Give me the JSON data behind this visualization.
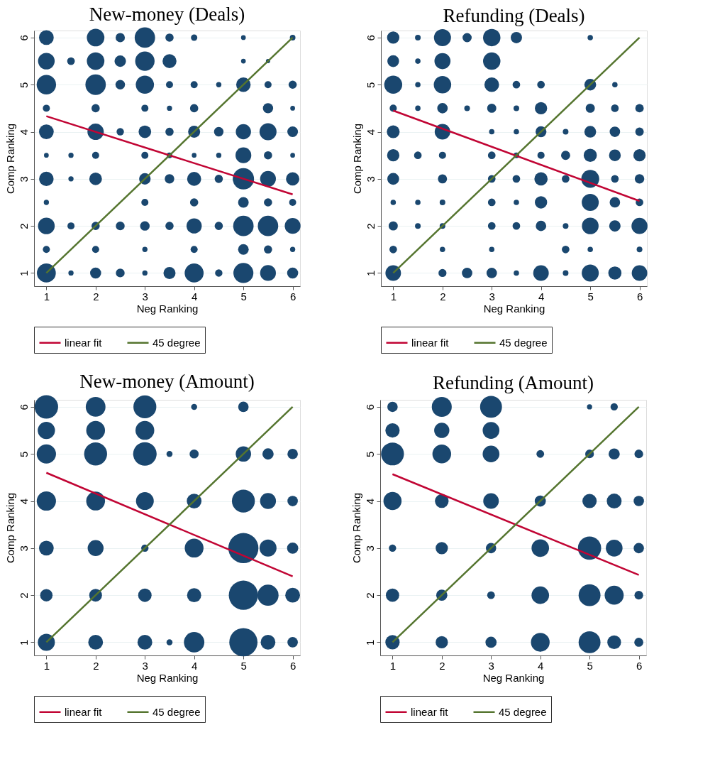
{
  "chart_data": [
    {
      "type": "bubble",
      "title": "New-money (Deals)",
      "xlabel": "Neg Ranking",
      "ylabel": "Comp Ranking",
      "xlim": [
        0.75,
        6.15
      ],
      "ylim": [
        0.72,
        6.15
      ],
      "xticks": [
        1,
        2,
        3,
        4,
        5,
        6
      ],
      "yticks": [
        1,
        2,
        3,
        4,
        5,
        6
      ],
      "grid": "y",
      "legend": "bottom",
      "series": [
        {
          "color": "#1a476f",
          "x": [
            1,
            2,
            2.5,
            3,
            3.5,
            4,
            5,
            6
          ],
          "values": [
            6,
            6,
            6,
            6,
            6,
            6,
            6,
            6
          ],
          "sizes": [
            0.48,
            0.68,
            0.19,
            0.92,
            0.15,
            0.09,
            0.05,
            0.07
          ]
        },
        {
          "color": "#1a476f",
          "x": [
            1,
            1.5,
            2,
            2.5,
            3,
            3.5,
            5,
            5.5
          ],
          "values": [
            5.5,
            5.5,
            5.5,
            5.5,
            5.5,
            5.5,
            5.5,
            5.5
          ],
          "sizes": [
            0.61,
            0.13,
            0.68,
            0.29,
            0.83,
            0.43,
            0.05,
            0.04
          ]
        },
        {
          "color": "#1a476f",
          "x": [
            1,
            2,
            2.5,
            3,
            3.5,
            4,
            4.5,
            5,
            5.5,
            6
          ],
          "values": [
            5,
            5,
            5,
            5,
            5,
            5,
            5,
            5,
            5,
            5
          ],
          "sizes": [
            0.83,
            0.92,
            0.2,
            0.73,
            0.11,
            0.11,
            0.06,
            0.46,
            0.11,
            0.15
          ]
        },
        {
          "color": "#1a476f",
          "x": [
            1,
            2,
            3,
            3.5,
            4,
            5.5,
            6
          ],
          "values": [
            4.5,
            4.5,
            4.5,
            4.5,
            4.5,
            4.5,
            4.5
          ],
          "sizes": [
            0.11,
            0.15,
            0.11,
            0.06,
            0.15,
            0.23,
            0.05
          ]
        },
        {
          "color": "#1a476f",
          "x": [
            1,
            2,
            2.5,
            3,
            3.5,
            4,
            4.5,
            5,
            5.5,
            6
          ],
          "values": [
            4,
            4,
            4,
            4,
            4,
            4,
            4,
            4,
            4,
            4
          ],
          "sizes": [
            0.48,
            0.59,
            0.12,
            0.35,
            0.15,
            0.32,
            0.2,
            0.51,
            0.64,
            0.25
          ]
        },
        {
          "color": "#1a476f",
          "x": [
            1,
            1.5,
            2,
            3,
            3.5,
            4,
            4.5,
            5,
            5.5,
            6
          ],
          "values": [
            3.5,
            3.5,
            3.5,
            3.5,
            3.5,
            3.5,
            3.5,
            3.5,
            3.5,
            3.5
          ],
          "sizes": [
            0.05,
            0.06,
            0.11,
            0.11,
            0.07,
            0.05,
            0.06,
            0.55,
            0.15,
            0.05
          ]
        },
        {
          "color": "#1a476f",
          "x": [
            1,
            1.5,
            2,
            3,
            3.5,
            4,
            4.5,
            5,
            5.5,
            6
          ],
          "values": [
            3,
            3,
            3,
            3,
            3,
            3,
            3,
            3,
            3,
            3
          ],
          "sizes": [
            0.46,
            0.06,
            0.35,
            0.29,
            0.2,
            0.43,
            0.15,
            1,
            0.55,
            0.39
          ]
        },
        {
          "color": "#1a476f",
          "x": [
            1,
            3,
            4,
            5,
            5.5,
            6
          ],
          "values": [
            2.5,
            2.5,
            2.5,
            2.5,
            2.5,
            2.5
          ],
          "sizes": [
            0.06,
            0.11,
            0.15,
            0.25,
            0.15,
            0.11
          ]
        },
        {
          "color": "#1a476f",
          "x": [
            1,
            1.5,
            2,
            2.5,
            3,
            3.5,
            4,
            4.5,
            5,
            5.5,
            6
          ],
          "values": [
            2,
            2,
            2,
            2,
            2,
            2,
            2,
            2,
            2,
            2,
            2
          ],
          "sizes": [
            0.61,
            0.11,
            0.15,
            0.17,
            0.2,
            0.15,
            0.51,
            0.15,
            0.92,
            0.92,
            0.55
          ]
        },
        {
          "color": "#1a476f",
          "x": [
            1,
            2,
            3,
            4,
            5,
            5.5,
            6
          ],
          "values": [
            1.5,
            1.5,
            1.5,
            1.5,
            1.5,
            1.5,
            1.5
          ],
          "sizes": [
            0.11,
            0.11,
            0.06,
            0.11,
            0.25,
            0.15,
            0.06
          ]
        },
        {
          "color": "#1a476f",
          "x": [
            1,
            1.5,
            2,
            2.5,
            3,
            3.5,
            4,
            4.5,
            5,
            5.5,
            6
          ],
          "values": [
            1,
            1,
            1,
            1,
            1,
            1,
            1,
            1,
            1,
            1,
            1
          ],
          "sizes": [
            0.79,
            0.06,
            0.27,
            0.17,
            0.06,
            0.32,
            0.79,
            0.12,
            0.88,
            0.55,
            0.27
          ]
        },
        {
          "type": "line",
          "name": "linear fit",
          "color": "#c10534",
          "x": [
            1,
            6
          ],
          "values": [
            4.33,
            2.67
          ]
        },
        {
          "type": "line",
          "name": "45 degree",
          "color": "#55752f",
          "x": [
            1,
            6
          ],
          "values": [
            1,
            6
          ]
        }
      ]
    },
    {
      "type": "bubble",
      "title": "Refunding (Deals)",
      "xlabel": "Neg Ranking",
      "ylabel": "Comp Ranking",
      "xlim": [
        0.75,
        6.15
      ],
      "ylim": [
        0.72,
        6.15
      ],
      "xticks": [
        1,
        2,
        3,
        4,
        5,
        6
      ],
      "yticks": [
        1,
        2,
        3,
        4,
        5,
        6
      ],
      "grid": "y",
      "legend": "bottom",
      "series": [
        {
          "color": "#1a476f",
          "x": [
            1,
            1.5,
            2,
            2.5,
            3,
            3.5,
            5
          ],
          "values": [
            6,
            6,
            6,
            6,
            6,
            6,
            6
          ],
          "sizes": [
            0.47,
            0.1,
            0.9,
            0.26,
            0.94,
            0.4,
            0.09
          ]
        },
        {
          "color": "#1a476f",
          "x": [
            1,
            1.5,
            2,
            3
          ],
          "values": [
            5.5,
            5.5,
            5.5,
            5.5
          ],
          "sizes": [
            0.43,
            0.09,
            0.8,
            0.94
          ]
        },
        {
          "color": "#1a476f",
          "x": [
            1,
            1.5,
            2,
            3,
            3.5,
            4,
            5,
            5.5
          ],
          "values": [
            5,
            5,
            5,
            5,
            5,
            5,
            5,
            5
          ],
          "sizes": [
            1,
            0.09,
            0.94,
            0.67,
            0.18,
            0.18,
            0.43,
            0.09
          ]
        },
        {
          "color": "#1a476f",
          "x": [
            1,
            1.5,
            2,
            2.5,
            3,
            3.5,
            4,
            5,
            5.5,
            6
          ],
          "values": [
            4.5,
            4.5,
            4.5,
            4.5,
            4.5,
            4.5,
            4.5,
            4.5,
            4.5,
            4.5
          ],
          "sizes": [
            0.16,
            0.09,
            0.34,
            0.1,
            0.26,
            0.1,
            0.47,
            0.26,
            0.18,
            0.22
          ]
        },
        {
          "color": "#1a476f",
          "x": [
            1,
            2,
            3,
            3.5,
            4,
            4.5,
            5,
            5.5,
            6
          ],
          "values": [
            4,
            4,
            4,
            4,
            4,
            4,
            4,
            4,
            4
          ],
          "sizes": [
            0.51,
            0.75,
            0.09,
            0.09,
            0.37,
            0.1,
            0.43,
            0.34,
            0.22
          ]
        },
        {
          "color": "#1a476f",
          "x": [
            1,
            1.5,
            2,
            3,
            3.5,
            4,
            4.5,
            5,
            5.5,
            6
          ],
          "values": [
            3.5,
            3.5,
            3.5,
            3.5,
            3.5,
            3.5,
            3.5,
            3.5,
            3.5,
            3.5
          ],
          "sizes": [
            0.47,
            0.18,
            0.16,
            0.18,
            0.1,
            0.16,
            0.26,
            0.54,
            0.43,
            0.47
          ]
        },
        {
          "color": "#1a476f",
          "x": [
            1,
            2,
            3,
            3.5,
            4,
            4.5,
            5,
            5.5,
            6
          ],
          "values": [
            3,
            3,
            3,
            3,
            3,
            3,
            3,
            3,
            3
          ],
          "sizes": [
            0.43,
            0.26,
            0.18,
            0.18,
            0.54,
            0.18,
            1,
            0.18,
            0.28
          ]
        },
        {
          "color": "#1a476f",
          "x": [
            1,
            1.5,
            2,
            3,
            3.5,
            4,
            5,
            5.5,
            6
          ],
          "values": [
            2.5,
            2.5,
            2.5,
            2.5,
            2.5,
            2.5,
            2.5,
            2.5,
            2.5
          ],
          "sizes": [
            0.09,
            0.09,
            0.1,
            0.18,
            0.09,
            0.47,
            0.9,
            0.34,
            0.18
          ]
        },
        {
          "color": "#1a476f",
          "x": [
            1,
            1.5,
            2,
            3,
            3.5,
            4,
            4.5,
            5,
            5.5,
            6
          ],
          "values": [
            2,
            2,
            2,
            2,
            2,
            2,
            2,
            2,
            2,
            2
          ],
          "sizes": [
            0.26,
            0.1,
            0.1,
            0.18,
            0.18,
            0.34,
            0.1,
            0.86,
            0.4,
            0.8
          ]
        },
        {
          "color": "#1a476f",
          "x": [
            1,
            2,
            3,
            4.5,
            5,
            6
          ],
          "values": [
            1.5,
            1.5,
            1.5,
            1.5,
            1.5,
            1.5
          ],
          "sizes": [
            0.18,
            0.09,
            0.09,
            0.18,
            0.09,
            0.1
          ]
        },
        {
          "color": "#1a476f",
          "x": [
            1,
            2,
            2.5,
            3,
            3.5,
            4,
            4.5,
            5,
            5.5,
            6
          ],
          "values": [
            1,
            1,
            1,
            1,
            1,
            1,
            1,
            1,
            1,
            1
          ],
          "sizes": [
            0.75,
            0.2,
            0.34,
            0.34,
            0.09,
            0.75,
            0.1,
            0.9,
            0.54,
            0.75
          ]
        },
        {
          "type": "line",
          "name": "linear fit",
          "color": "#c10534",
          "x": [
            1,
            6
          ],
          "values": [
            4.45,
            2.53
          ]
        },
        {
          "type": "line",
          "name": "45 degree",
          "color": "#55752f",
          "x": [
            1,
            6
          ],
          "values": [
            1,
            6
          ]
        }
      ]
    },
    {
      "type": "bubble",
      "title": "New-money (Amount)",
      "xlabel": "Neg Ranking",
      "ylabel": "Comp Ranking",
      "xlim": [
        0.75,
        6.15
      ],
      "ylim": [
        0.72,
        6.15
      ],
      "xticks": [
        1,
        2,
        3,
        4,
        5,
        6
      ],
      "yticks": [
        1,
        2,
        3,
        4,
        5,
        6
      ],
      "grid": "y",
      "legend": "bottom",
      "series": [
        {
          "color": "#1a476f",
          "x": [
            1,
            2,
            3,
            4,
            5
          ],
          "values": [
            6,
            6,
            6,
            6,
            6
          ],
          "sizes": [
            0.61,
            0.43,
            0.58,
            0.04,
            0.12
          ]
        },
        {
          "color": "#1a476f",
          "x": [
            1,
            2,
            3
          ],
          "values": [
            5.5,
            5.5,
            5.5
          ],
          "sizes": [
            0.33,
            0.39,
            0.39
          ]
        },
        {
          "color": "#1a476f",
          "x": [
            1,
            2,
            3,
            3.5,
            4,
            5,
            5.5,
            6
          ],
          "values": [
            5,
            5,
            5,
            5,
            5,
            5,
            5,
            5
          ],
          "sizes": [
            0.41,
            0.58,
            0.61,
            0.04,
            0.09,
            0.26,
            0.14,
            0.12
          ]
        },
        {
          "color": "#1a476f",
          "x": [
            1,
            2,
            3,
            4,
            5,
            5.5,
            6
          ],
          "values": [
            4,
            4,
            4,
            4,
            4,
            4,
            4
          ],
          "sizes": [
            0.41,
            0.39,
            0.35,
            0.24,
            0.58,
            0.28,
            0.12
          ]
        },
        {
          "color": "#1a476f",
          "x": [
            1,
            2,
            3,
            4,
            5,
            5.5,
            6
          ],
          "values": [
            3,
            3,
            3,
            3,
            3,
            3,
            3
          ],
          "sizes": [
            0.24,
            0.28,
            0.06,
            0.39,
            1,
            0.32,
            0.14
          ]
        },
        {
          "color": "#1a476f",
          "x": [
            1,
            2,
            3,
            4,
            5,
            5.5,
            6
          ],
          "values": [
            2,
            2,
            2,
            2,
            2,
            2,
            2
          ],
          "sizes": [
            0.17,
            0.18,
            0.2,
            0.22,
            0.94,
            0.49,
            0.24
          ]
        },
        {
          "color": "#1a476f",
          "x": [
            1,
            2,
            3,
            3.5,
            4,
            5,
            5.5,
            6
          ],
          "values": [
            1,
            1,
            1,
            1,
            1,
            1,
            1,
            1
          ],
          "sizes": [
            0.32,
            0.24,
            0.24,
            0.04,
            0.46,
            0.88,
            0.24,
            0.12
          ]
        },
        {
          "type": "line",
          "name": "linear fit",
          "color": "#c10534",
          "x": [
            1,
            6
          ],
          "values": [
            4.6,
            2.4
          ]
        },
        {
          "type": "line",
          "name": "45 degree",
          "color": "#55752f",
          "x": [
            1,
            6
          ],
          "values": [
            1,
            6
          ]
        }
      ]
    },
    {
      "type": "bubble",
      "title": "Refunding (Amount)",
      "xlabel": "Neg Ranking",
      "ylabel": "Comp Ranking",
      "xlim": [
        0.75,
        6.15
      ],
      "ylim": [
        0.72,
        6.15
      ],
      "xticks": [
        1,
        2,
        3,
        4,
        5,
        6
      ],
      "yticks": [
        1,
        2,
        3,
        4,
        5,
        6
      ],
      "grid": "y",
      "legend": "bottom",
      "series": [
        {
          "color": "#1a476f",
          "x": [
            1,
            2,
            3,
            5,
            5.5
          ],
          "values": [
            6,
            6,
            6,
            6,
            6
          ],
          "sizes": [
            0.2,
            0.74,
            0.89,
            0.05,
            0.1
          ]
        },
        {
          "color": "#1a476f",
          "x": [
            1,
            2,
            3
          ],
          "values": [
            5.5,
            5.5,
            5.5
          ],
          "sizes": [
            0.38,
            0.43,
            0.52
          ]
        },
        {
          "color": "#1a476f",
          "x": [
            1,
            2,
            3,
            4,
            5,
            5.5,
            6
          ],
          "values": [
            5,
            5,
            5,
            5,
            5,
            5,
            5
          ],
          "sizes": [
            0.97,
            0.65,
            0.52,
            0.11,
            0.14,
            0.23,
            0.14
          ]
        },
        {
          "color": "#1a476f",
          "x": [
            1,
            2,
            3,
            4,
            5,
            5.5,
            6
          ],
          "values": [
            4,
            4,
            4,
            4,
            4,
            4,
            4
          ],
          "sizes": [
            0.61,
            0.35,
            0.45,
            0.23,
            0.38,
            0.41,
            0.2
          ]
        },
        {
          "color": "#1a476f",
          "x": [
            1,
            2,
            3,
            4,
            5,
            5.5,
            6
          ],
          "values": [
            3,
            3,
            3,
            3,
            3,
            3,
            3
          ],
          "sizes": [
            0.1,
            0.28,
            0.2,
            0.57,
            1,
            0.52,
            0.2
          ]
        },
        {
          "color": "#1a476f",
          "x": [
            1,
            2,
            3,
            4,
            5,
            5.5,
            6
          ],
          "values": [
            2,
            2,
            2,
            2,
            2,
            2,
            2
          ],
          "sizes": [
            0.33,
            0.23,
            0.11,
            0.57,
            0.89,
            0.67,
            0.14
          ]
        },
        {
          "color": "#1a476f",
          "x": [
            1,
            2,
            3,
            4,
            5,
            5.5,
            6
          ],
          "values": [
            1,
            1,
            1,
            1,
            1,
            1,
            1
          ],
          "sizes": [
            0.38,
            0.28,
            0.23,
            0.65,
            0.89,
            0.35,
            0.15
          ]
        },
        {
          "type": "line",
          "name": "linear fit",
          "color": "#c10534",
          "x": [
            1,
            6
          ],
          "values": [
            4.57,
            2.43
          ]
        },
        {
          "type": "line",
          "name": "45 degree",
          "color": "#55752f",
          "x": [
            1,
            6
          ],
          "values": [
            1,
            6
          ]
        }
      ]
    }
  ]
}
